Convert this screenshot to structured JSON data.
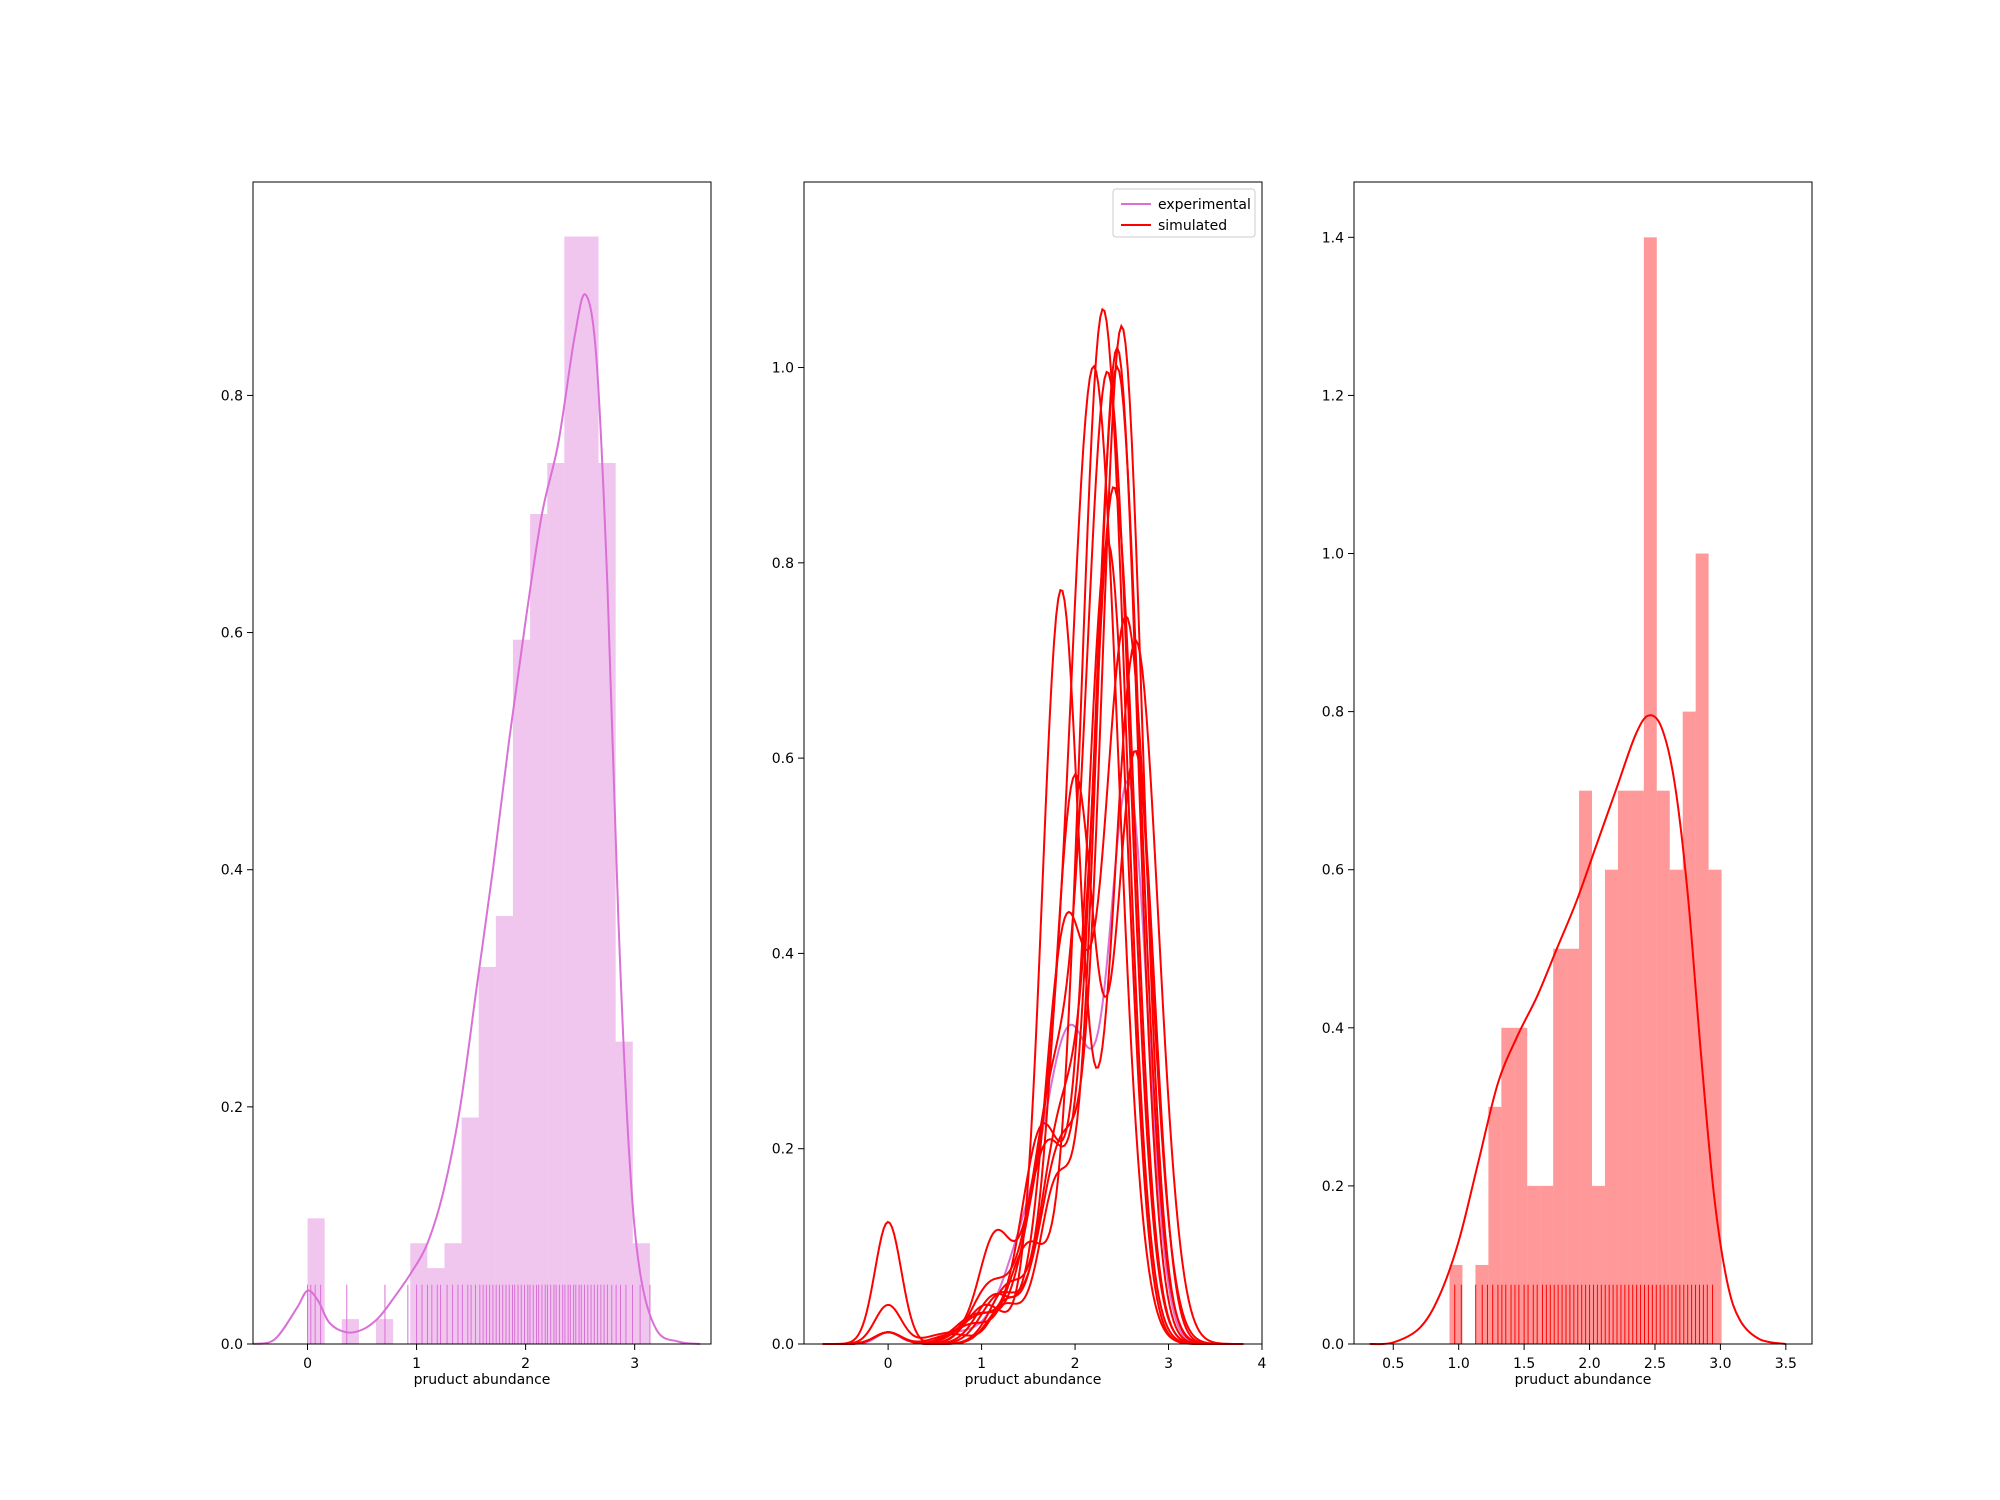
{
  "colors": {
    "experimental": "#da70d6",
    "simulated": "#ff0000",
    "axes": "#000000",
    "background": "#ffffff"
  },
  "chart_data": [
    {
      "type": "histogram+kde+rug",
      "title": "",
      "xlabel": "pruduct abundance",
      "ylabel": "",
      "xlim": [
        -0.5,
        3.7
      ],
      "ylim": [
        0,
        0.98
      ],
      "xticks": [
        0,
        1,
        2,
        3
      ],
      "xtick_labels": [
        "0",
        "1",
        "2",
        "3"
      ],
      "yticks": [
        0.0,
        0.2,
        0.4,
        0.6,
        0.8
      ],
      "ytick_labels": [
        "0.0",
        "0.2",
        "0.4",
        "0.6",
        "0.8"
      ],
      "color": "#da70d6",
      "bin_width": 0.157,
      "bins": [
        {
          "x0": 0.0,
          "height": 0.106
        },
        {
          "x0": 0.314,
          "height": 0.021
        },
        {
          "x0": 0.628,
          "height": 0.021
        },
        {
          "x0": 0.942,
          "height": 0.085
        },
        {
          "x0": 1.099,
          "height": 0.064
        },
        {
          "x0": 1.256,
          "height": 0.085
        },
        {
          "x0": 1.413,
          "height": 0.191
        },
        {
          "x0": 1.57,
          "height": 0.318
        },
        {
          "x0": 1.727,
          "height": 0.361
        },
        {
          "x0": 1.884,
          "height": 0.594
        },
        {
          "x0": 2.041,
          "height": 0.7
        },
        {
          "x0": 2.198,
          "height": 0.743
        },
        {
          "x0": 2.355,
          "height": 0.934
        },
        {
          "x0": 2.512,
          "height": 0.934
        },
        {
          "x0": 2.669,
          "height": 0.743
        },
        {
          "x0": 2.826,
          "height": 0.255
        },
        {
          "x0": 2.983,
          "height": 0.085
        }
      ],
      "kde": {
        "x": [
          -0.5,
          -0.3,
          -0.1,
          0.0,
          0.1,
          0.2,
          0.35,
          0.5,
          0.65,
          0.8,
          0.95,
          1.1,
          1.25,
          1.4,
          1.55,
          1.7,
          1.85,
          2.0,
          2.15,
          2.3,
          2.45,
          2.55,
          2.65,
          2.75,
          2.85,
          2.95,
          3.05,
          3.2,
          3.4,
          3.6
        ],
        "y": [
          0.0,
          0.004,
          0.03,
          0.045,
          0.036,
          0.018,
          0.01,
          0.012,
          0.022,
          0.04,
          0.06,
          0.085,
          0.13,
          0.2,
          0.3,
          0.4,
          0.51,
          0.61,
          0.7,
          0.76,
          0.85,
          0.885,
          0.83,
          0.64,
          0.36,
          0.16,
          0.06,
          0.012,
          0.002,
          0.0
        ]
      },
      "rug": [
        0.0,
        0.03,
        0.07,
        0.12,
        0.36,
        0.71,
        0.92,
        1.0,
        1.05,
        1.1,
        1.14,
        1.19,
        1.22,
        1.28,
        1.33,
        1.38,
        1.42,
        1.47,
        1.5,
        1.54,
        1.58,
        1.61,
        1.64,
        1.67,
        1.7,
        1.73,
        1.76,
        1.79,
        1.82,
        1.85,
        1.88,
        1.9,
        1.93,
        1.96,
        1.99,
        2.02,
        2.04,
        2.07,
        2.1,
        2.12,
        2.15,
        2.18,
        2.2,
        2.23,
        2.26,
        2.28,
        2.31,
        2.34,
        2.36,
        2.39,
        2.41,
        2.44,
        2.46,
        2.49,
        2.51,
        2.54,
        2.57,
        2.6,
        2.63,
        2.66,
        2.69,
        2.72,
        2.75,
        2.79,
        2.83,
        2.87,
        2.92,
        2.98,
        3.05,
        3.14
      ],
      "rug_height": 0.05
    },
    {
      "type": "kde-lines",
      "title": "",
      "xlabel": "pruduct abundance",
      "ylabel": "",
      "xlim": [
        -0.9,
        4.0
      ],
      "ylim": [
        0,
        1.19
      ],
      "xticks": [
        0,
        1,
        2,
        3,
        4
      ],
      "xtick_labels": [
        "0",
        "1",
        "2",
        "3",
        "4"
      ],
      "yticks": [
        0.0,
        0.2,
        0.4,
        0.6,
        0.8,
        1.0
      ],
      "ytick_labels": [
        "0.0",
        "0.2",
        "0.4",
        "0.6",
        "0.8",
        "1.0"
      ],
      "legend": {
        "position": "top-right",
        "entries": [
          {
            "label": "experimental",
            "color": "#da70d6"
          },
          {
            "label": "simulated",
            "color": "#ff0000"
          }
        ]
      },
      "kde_grid_min": -0.7,
      "kde_grid_max": 3.8,
      "series": [
        {
          "name": "experimental",
          "color": "#da70d6",
          "components": [
            [
              0.0,
              0.12,
              0.012
            ],
            [
              0.8,
              0.25,
              0.012
            ],
            [
              1.4,
              0.22,
              0.07
            ],
            [
              1.95,
              0.28,
              0.32
            ],
            [
              2.58,
              0.2,
              0.55
            ]
          ]
        },
        {
          "name": "simulated",
          "color": "#ff0000",
          "components": [
            [
              0.0,
              0.14,
              0.012
            ],
            [
              0.7,
              0.2,
              0.01
            ],
            [
              1.25,
              0.15,
              0.04
            ],
            [
              1.85,
              0.22,
              0.22
            ],
            [
              2.42,
              0.22,
              0.87
            ]
          ]
        },
        {
          "name": "simulated",
          "color": "#ff0000",
          "components": [
            [
              0.0,
              0.14,
              0.04
            ],
            [
              0.6,
              0.2,
              0.01
            ],
            [
              1.15,
              0.18,
              0.11
            ],
            [
              1.75,
              0.22,
              0.24
            ],
            [
              2.35,
              0.24,
              0.99
            ]
          ]
        },
        {
          "name": "simulated",
          "color": "#ff0000",
          "components": [
            [
              0.0,
              0.14,
              0.012
            ],
            [
              1.0,
              0.22,
              0.03
            ],
            [
              1.6,
              0.2,
              0.12
            ],
            [
              2.2,
              0.26,
              1.0
            ]
          ]
        },
        {
          "name": "simulated",
          "color": "#ff0000",
          "components": [
            [
              0.0,
              0.14,
              0.012
            ],
            [
              0.9,
              0.2,
              0.02
            ],
            [
              1.5,
              0.2,
              0.1
            ],
            [
              2.3,
              0.24,
              1.06
            ]
          ]
        },
        {
          "name": "simulated",
          "color": "#ff0000",
          "components": [
            [
              0.0,
              0.14,
              0.012
            ],
            [
              1.2,
              0.2,
              0.05
            ],
            [
              1.85,
              0.22,
              0.2
            ],
            [
              2.5,
              0.22,
              1.04
            ]
          ]
        },
        {
          "name": "simulated",
          "color": "#ff0000",
          "components": [
            [
              0.0,
              0.14,
              0.012
            ],
            [
              1.1,
              0.2,
              0.06
            ],
            [
              1.7,
              0.22,
              0.2
            ],
            [
              2.45,
              0.24,
              1.0
            ]
          ]
        },
        {
          "name": "simulated",
          "color": "#ff0000",
          "components": [
            [
              0.0,
              0.14,
              0.125
            ],
            [
              1.25,
              0.18,
              0.04
            ],
            [
              1.8,
              0.18,
              0.16
            ],
            [
              2.45,
              0.22,
              1.02
            ]
          ]
        },
        {
          "name": "simulated",
          "color": "#ff0000",
          "components": [
            [
              0.0,
              0.14,
              0.012
            ],
            [
              1.05,
              0.2,
              0.04
            ],
            [
              1.85,
              0.2,
              0.77
            ],
            [
              2.65,
              0.24,
              0.72
            ]
          ]
        },
        {
          "name": "simulated",
          "color": "#ff0000",
          "components": [
            [
              0.0,
              0.14,
              0.012
            ],
            [
              1.15,
              0.2,
              0.05
            ],
            [
              1.9,
              0.22,
              0.42
            ],
            [
              2.55,
              0.24,
              0.74
            ]
          ]
        },
        {
          "name": "simulated",
          "color": "#ff0000",
          "components": [
            [
              0.0,
              0.14,
              0.012
            ],
            [
              0.95,
              0.22,
              0.03
            ],
            [
              1.65,
              0.22,
              0.22
            ],
            [
              2.35,
              0.22,
              0.82
            ]
          ]
        },
        {
          "name": "simulated",
          "color": "#ff0000",
          "components": [
            [
              0.0,
              0.14,
              0.012
            ],
            [
              1.3,
              0.2,
              0.06
            ],
            [
              2.0,
              0.22,
              0.58
            ],
            [
              2.65,
              0.2,
              0.6
            ]
          ]
        }
      ]
    },
    {
      "type": "histogram+kde+rug",
      "title": "",
      "xlabel": "pruduct abundance",
      "ylabel": "",
      "xlim": [
        0.2,
        3.7
      ],
      "ylim": [
        0,
        1.47
      ],
      "xticks": [
        0.5,
        1.0,
        1.5,
        2.0,
        2.5,
        3.0,
        3.5
      ],
      "xtick_labels": [
        "0.5",
        "1.0",
        "1.5",
        "2.0",
        "2.5",
        "3.0",
        "3.5"
      ],
      "yticks": [
        0.0,
        0.2,
        0.4,
        0.6,
        0.8,
        1.0,
        1.2,
        1.4
      ],
      "ytick_labels": [
        "0.0",
        "0.2",
        "0.4",
        "0.6",
        "0.8",
        "1.0",
        "1.2",
        "1.4"
      ],
      "color": "#ff0000",
      "bin_width": 0.099,
      "bins": [
        {
          "x0": 0.93,
          "height": 0.1
        },
        {
          "x0": 1.128,
          "height": 0.1
        },
        {
          "x0": 1.227,
          "height": 0.3
        },
        {
          "x0": 1.326,
          "height": 0.4
        },
        {
          "x0": 1.425,
          "height": 0.4
        },
        {
          "x0": 1.524,
          "height": 0.2
        },
        {
          "x0": 1.623,
          "height": 0.2
        },
        {
          "x0": 1.722,
          "height": 0.5
        },
        {
          "x0": 1.821,
          "height": 0.5
        },
        {
          "x0": 1.92,
          "height": 0.7
        },
        {
          "x0": 2.019,
          "height": 0.2
        },
        {
          "x0": 2.118,
          "height": 0.6
        },
        {
          "x0": 2.217,
          "height": 0.7
        },
        {
          "x0": 2.316,
          "height": 0.7
        },
        {
          "x0": 2.415,
          "height": 1.4
        },
        {
          "x0": 2.514,
          "height": 0.7
        },
        {
          "x0": 2.613,
          "height": 0.6
        },
        {
          "x0": 2.712,
          "height": 0.8
        },
        {
          "x0": 2.811,
          "height": 1.0
        },
        {
          "x0": 2.91,
          "height": 0.6
        }
      ],
      "kde": {
        "x": [
          0.32,
          0.5,
          0.7,
          0.85,
          1.0,
          1.15,
          1.3,
          1.45,
          1.6,
          1.75,
          1.9,
          2.05,
          2.2,
          2.35,
          2.45,
          2.55,
          2.65,
          2.75,
          2.85,
          2.95,
          3.05,
          3.15,
          3.3,
          3.5
        ],
        "y": [
          0.0,
          0.002,
          0.02,
          0.06,
          0.13,
          0.23,
          0.33,
          0.39,
          0.44,
          0.5,
          0.56,
          0.63,
          0.7,
          0.77,
          0.795,
          0.78,
          0.71,
          0.57,
          0.37,
          0.19,
          0.08,
          0.03,
          0.006,
          0.0
        ]
      },
      "rug": [
        0.97,
        1.02,
        1.13,
        1.18,
        1.22,
        1.26,
        1.3,
        1.33,
        1.36,
        1.4,
        1.43,
        1.46,
        1.5,
        1.53,
        1.57,
        1.6,
        1.64,
        1.67,
        1.7,
        1.73,
        1.76,
        1.79,
        1.82,
        1.85,
        1.88,
        1.91,
        1.94,
        1.97,
        2.0,
        2.03,
        2.06,
        2.09,
        2.12,
        2.15,
        2.18,
        2.21,
        2.24,
        2.27,
        2.3,
        2.33,
        2.36,
        2.39,
        2.42,
        2.45,
        2.48,
        2.51,
        2.54,
        2.57,
        2.6,
        2.63,
        2.66,
        2.69,
        2.72,
        2.75,
        2.78,
        2.81,
        2.84,
        2.87,
        2.9,
        2.94
      ],
      "rug_height": 0.075
    }
  ]
}
